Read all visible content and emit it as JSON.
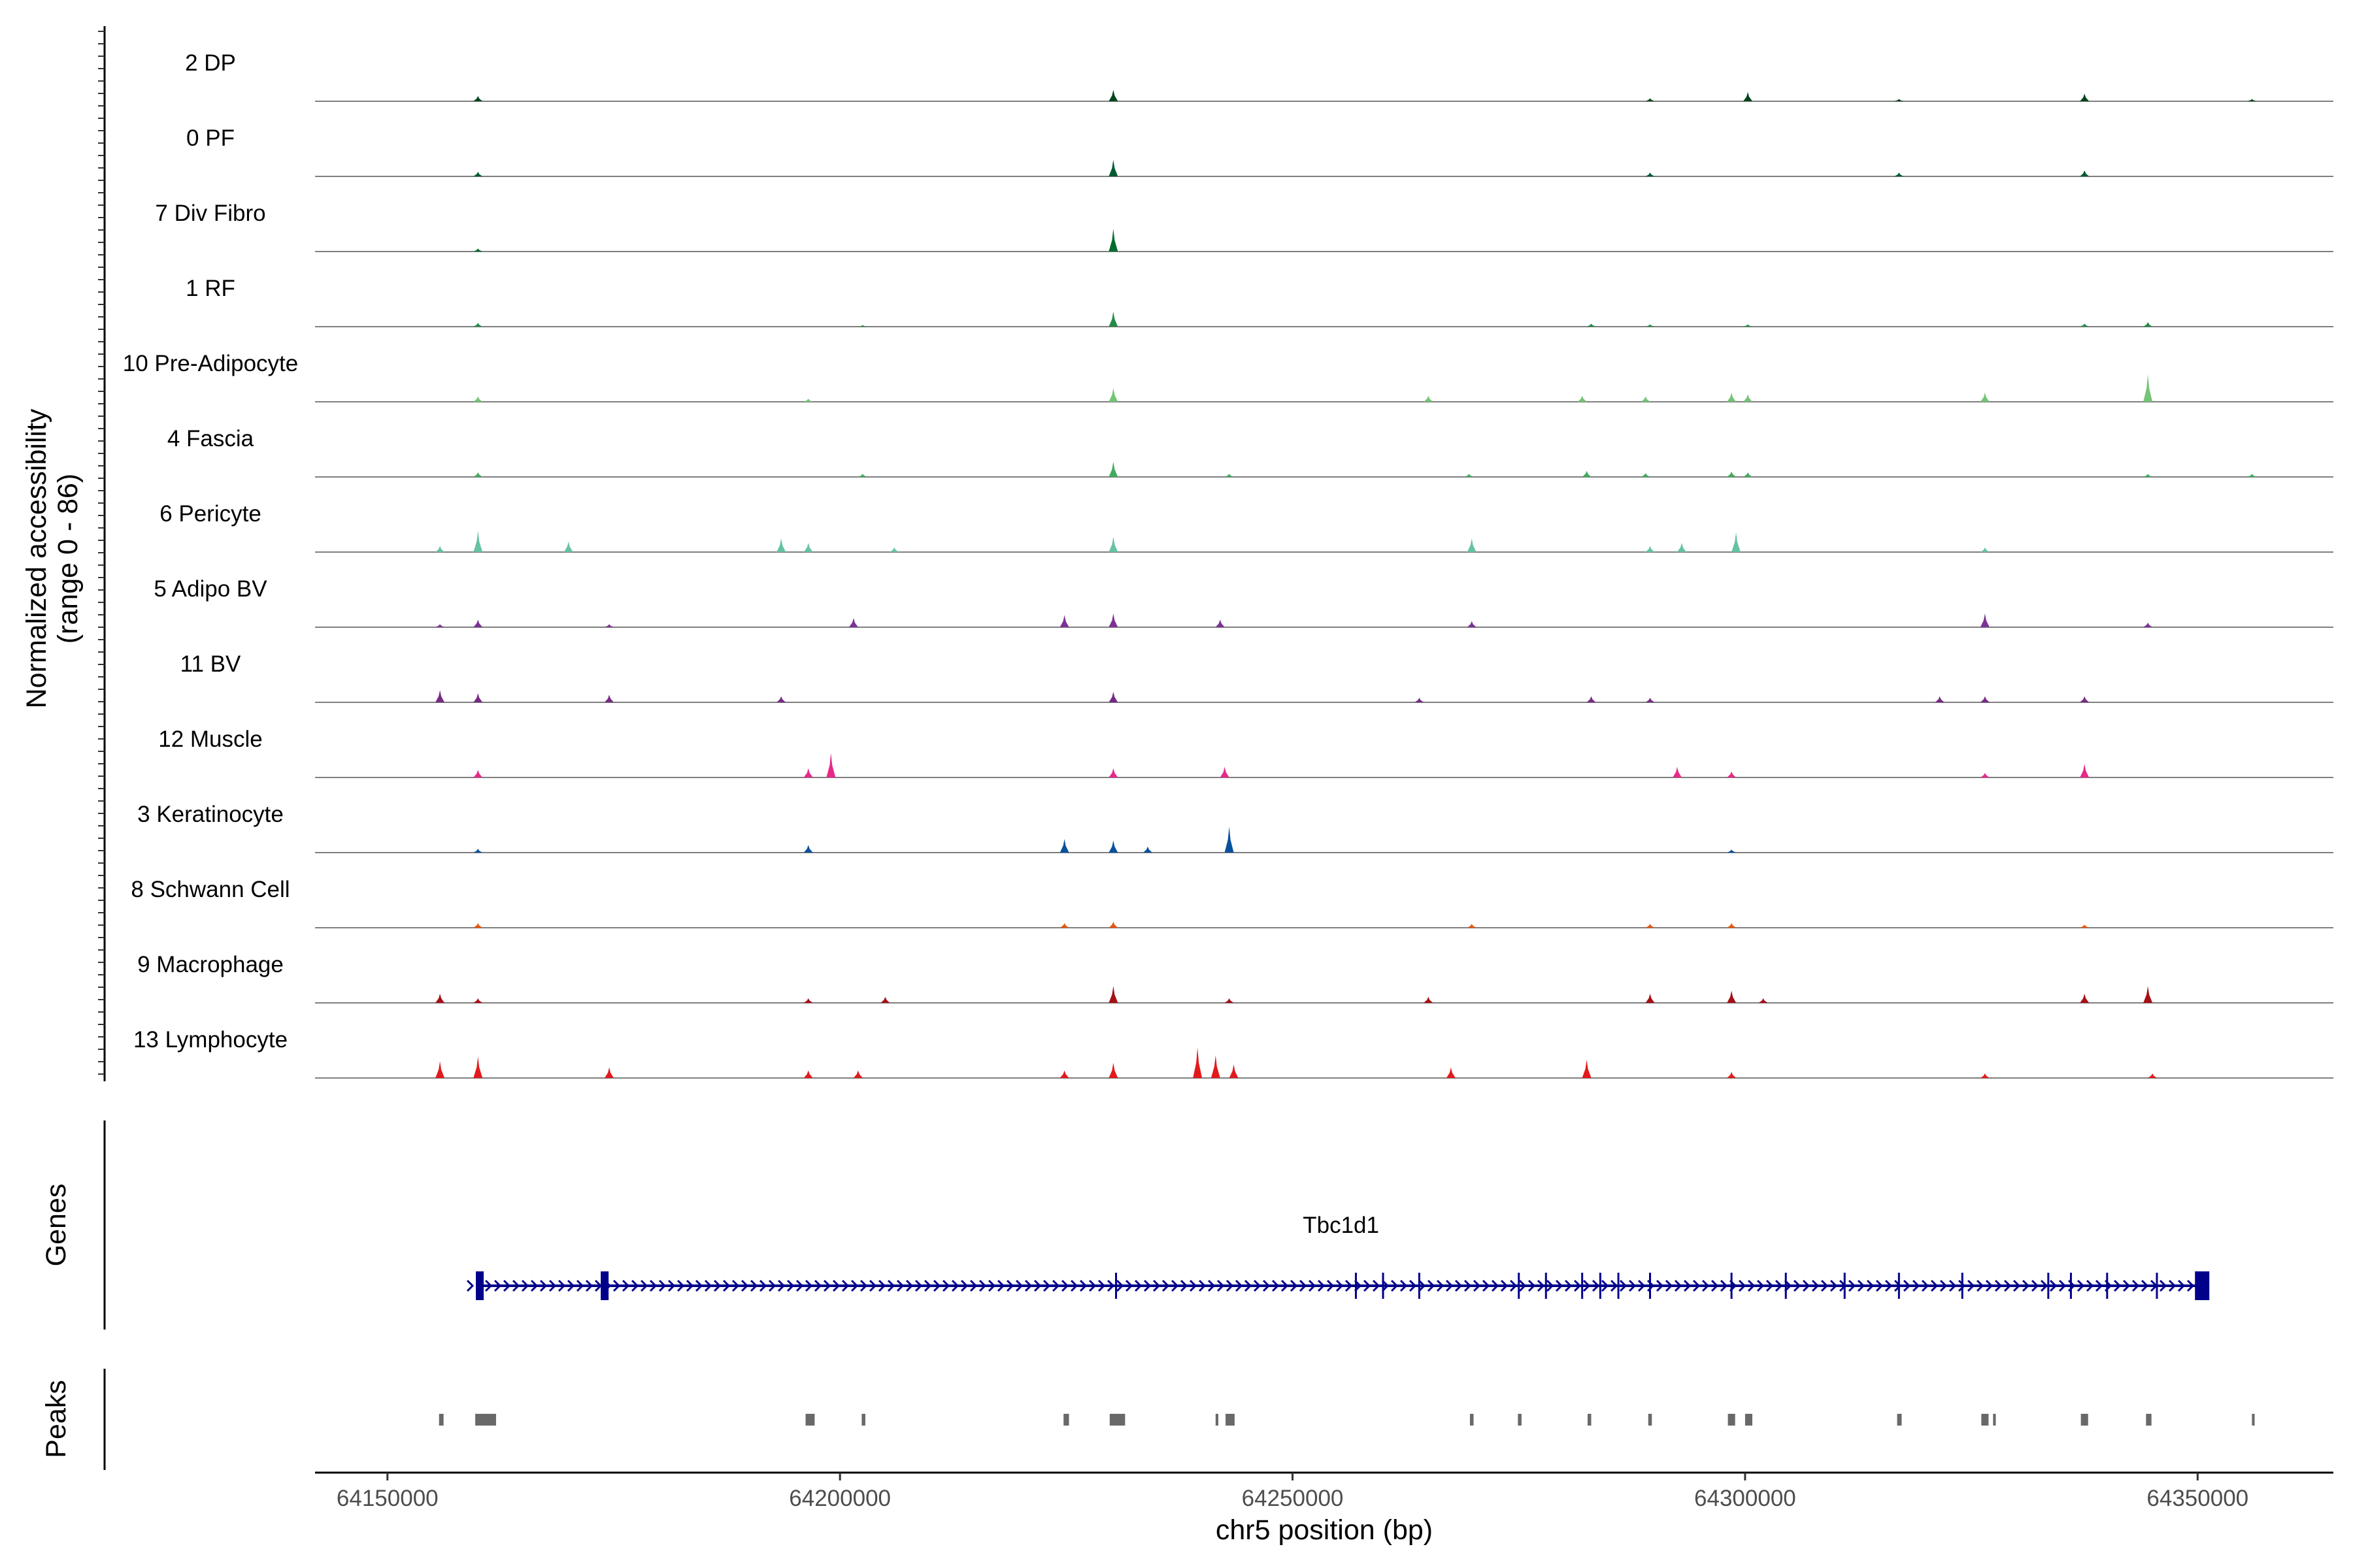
{
  "chart_data": {
    "type": "area",
    "title": "",
    "ylabel_line1": "Normalized accessibility",
    "ylabel_line2": "(range 0 - 86)",
    "ylim": [
      0,
      86
    ],
    "xlabel": "chr5 position (bp)",
    "xlim": [
      64142000,
      64365000
    ],
    "x_ticks": [
      64150000,
      64200000,
      64250000,
      64300000,
      64350000
    ],
    "x_tick_labels": [
      "64150000",
      "64200000",
      "64250000",
      "64300000",
      "64350000"
    ],
    "series": [
      {
        "name": "2 DP",
        "color": "#00441b",
        "peaks": [
          [
            64160000,
            7
          ],
          [
            64230200,
            15
          ],
          [
            64289500,
            4
          ],
          [
            64300300,
            12
          ],
          [
            64317000,
            3
          ],
          [
            64337500,
            10
          ],
          [
            64356000,
            3
          ]
        ]
      },
      {
        "name": "0 PF",
        "color": "#005a32",
        "peaks": [
          [
            64160000,
            6
          ],
          [
            64230200,
            22
          ],
          [
            64289500,
            5
          ],
          [
            64317000,
            5
          ],
          [
            64337500,
            8
          ]
        ]
      },
      {
        "name": "7 Div Fibro",
        "color": "#006d2c",
        "peaks": [
          [
            64160000,
            4
          ],
          [
            64230200,
            30
          ]
        ]
      },
      {
        "name": "1 RF",
        "color": "#238b45",
        "peaks": [
          [
            64160000,
            5
          ],
          [
            64202500,
            2
          ],
          [
            64230200,
            20
          ],
          [
            64283000,
            4
          ],
          [
            64289500,
            3
          ],
          [
            64300300,
            3
          ],
          [
            64337500,
            4
          ],
          [
            64344500,
            6
          ]
        ]
      },
      {
        "name": "10 Pre-Adipocyte",
        "color": "#74c476",
        "peaks": [
          [
            64160000,
            7
          ],
          [
            64196500,
            4
          ],
          [
            64230200,
            18
          ],
          [
            64265000,
            8
          ],
          [
            64282000,
            8
          ],
          [
            64289000,
            7
          ],
          [
            64298500,
            12
          ],
          [
            64300300,
            10
          ],
          [
            64326500,
            12
          ],
          [
            64344500,
            36
          ]
        ]
      },
      {
        "name": "4 Fascia",
        "color": "#41ab5d",
        "peaks": [
          [
            64160000,
            6
          ],
          [
            64202500,
            4
          ],
          [
            64230200,
            20
          ],
          [
            64243000,
            4
          ],
          [
            64269500,
            4
          ],
          [
            64282500,
            8
          ],
          [
            64289000,
            5
          ],
          [
            64298500,
            7
          ],
          [
            64300300,
            6
          ],
          [
            64344500,
            4
          ],
          [
            64356000,
            4
          ]
        ]
      },
      {
        "name": "6 Pericyte",
        "color": "#66c2a4",
        "peaks": [
          [
            64155800,
            8
          ],
          [
            64160000,
            28
          ],
          [
            64170000,
            14
          ],
          [
            64193500,
            18
          ],
          [
            64196500,
            12
          ],
          [
            64206000,
            6
          ],
          [
            64230200,
            20
          ],
          [
            64269800,
            18
          ],
          [
            64289500,
            8
          ],
          [
            64293000,
            12
          ],
          [
            64299000,
            26
          ],
          [
            64326500,
            6
          ]
        ]
      },
      {
        "name": "5 Adipo BV",
        "color": "#7b3294",
        "peaks": [
          [
            64155800,
            4
          ],
          [
            64160000,
            10
          ],
          [
            64174500,
            4
          ],
          [
            64201500,
            12
          ],
          [
            64224800,
            16
          ],
          [
            64230200,
            18
          ],
          [
            64242000,
            10
          ],
          [
            64269800,
            8
          ],
          [
            64326500,
            18
          ],
          [
            64344500,
            6
          ]
        ]
      },
      {
        "name": "11 BV",
        "color": "#762a83",
        "peaks": [
          [
            64155800,
            16
          ],
          [
            64160000,
            12
          ],
          [
            64174500,
            10
          ],
          [
            64193500,
            8
          ],
          [
            64230200,
            14
          ],
          [
            64264000,
            6
          ],
          [
            64283000,
            8
          ],
          [
            64289500,
            6
          ],
          [
            64321500,
            8
          ],
          [
            64326500,
            8
          ],
          [
            64337500,
            8
          ]
        ]
      },
      {
        "name": "12 Muscle",
        "color": "#e7298a",
        "peaks": [
          [
            64160000,
            10
          ],
          [
            64196500,
            12
          ],
          [
            64199000,
            32
          ],
          [
            64230200,
            12
          ],
          [
            64242500,
            14
          ],
          [
            64292500,
            14
          ],
          [
            64298500,
            8
          ],
          [
            64326500,
            6
          ],
          [
            64337500,
            18
          ]
        ]
      },
      {
        "name": "3 Keratinocyte",
        "color": "#08519c",
        "peaks": [
          [
            64160000,
            5
          ],
          [
            64196500,
            10
          ],
          [
            64224800,
            18
          ],
          [
            64230200,
            16
          ],
          [
            64234000,
            8
          ],
          [
            64243000,
            34
          ],
          [
            64298500,
            4
          ]
        ]
      },
      {
        "name": "8 Schwann Cell",
        "color": "#e6550d",
        "peaks": [
          [
            64160000,
            6
          ],
          [
            64224800,
            6
          ],
          [
            64230200,
            8
          ],
          [
            64269800,
            5
          ],
          [
            64289500,
            5
          ],
          [
            64298500,
            6
          ],
          [
            64337500,
            4
          ]
        ]
      },
      {
        "name": "9 Macrophage",
        "color": "#a50f15",
        "peaks": [
          [
            64155800,
            12
          ],
          [
            64160000,
            6
          ],
          [
            64196500,
            6
          ],
          [
            64205000,
            8
          ],
          [
            64230200,
            22
          ],
          [
            64243000,
            6
          ],
          [
            64265000,
            8
          ],
          [
            64289500,
            12
          ],
          [
            64298500,
            16
          ],
          [
            64302000,
            6
          ],
          [
            64337500,
            12
          ],
          [
            64344500,
            22
          ]
        ]
      },
      {
        "name": "13 Lymphocyte",
        "color": "#e31a1c",
        "peaks": [
          [
            64155800,
            22
          ],
          [
            64160000,
            28
          ],
          [
            64174500,
            14
          ],
          [
            64196500,
            10
          ],
          [
            64202000,
            10
          ],
          [
            64224800,
            10
          ],
          [
            64230200,
            20
          ],
          [
            64239500,
            40
          ],
          [
            64241500,
            30
          ],
          [
            64243500,
            18
          ],
          [
            64267500,
            14
          ],
          [
            64282500,
            24
          ],
          [
            64298500,
            8
          ],
          [
            64326500,
            6
          ],
          [
            64345000,
            6
          ]
        ]
      }
    ],
    "genes_label": "Genes",
    "gene": {
      "name": "Tbc1d1",
      "start": 64160200,
      "end": 64350500,
      "strand": "+",
      "color": "#00008b",
      "exons": [
        64160200,
        64174000,
        64230500,
        64257000,
        64260000,
        64264000,
        64275000,
        64278000,
        64282000,
        64284000,
        64286000,
        64289500,
        64298500,
        64304500,
        64311000,
        64317000,
        64324000,
        64333500,
        64336000,
        64340000,
        64345500,
        64350500
      ]
    },
    "peaks_label": "Peaks",
    "peak_color": "#696969",
    "peak_regions": [
      [
        64155700,
        64156200
      ],
      [
        64159700,
        64162000
      ],
      [
        64196200,
        64197200
      ],
      [
        64202400,
        64202800
      ],
      [
        64224700,
        64225300
      ],
      [
        64229800,
        64231500
      ],
      [
        64241500,
        64241800
      ],
      [
        64242600,
        64243600
      ],
      [
        64269600,
        64270000
      ],
      [
        64274900,
        64275300
      ],
      [
        64282600,
        64283000
      ],
      [
        64289300,
        64289700
      ],
      [
        64298100,
        64298900
      ],
      [
        64300000,
        64300800
      ],
      [
        64316800,
        64317300
      ],
      [
        64326100,
        64326900
      ],
      [
        64327400,
        64327700
      ],
      [
        64337100,
        64337900
      ],
      [
        64344300,
        64344900
      ],
      [
        64356000,
        64356300
      ]
    ]
  }
}
